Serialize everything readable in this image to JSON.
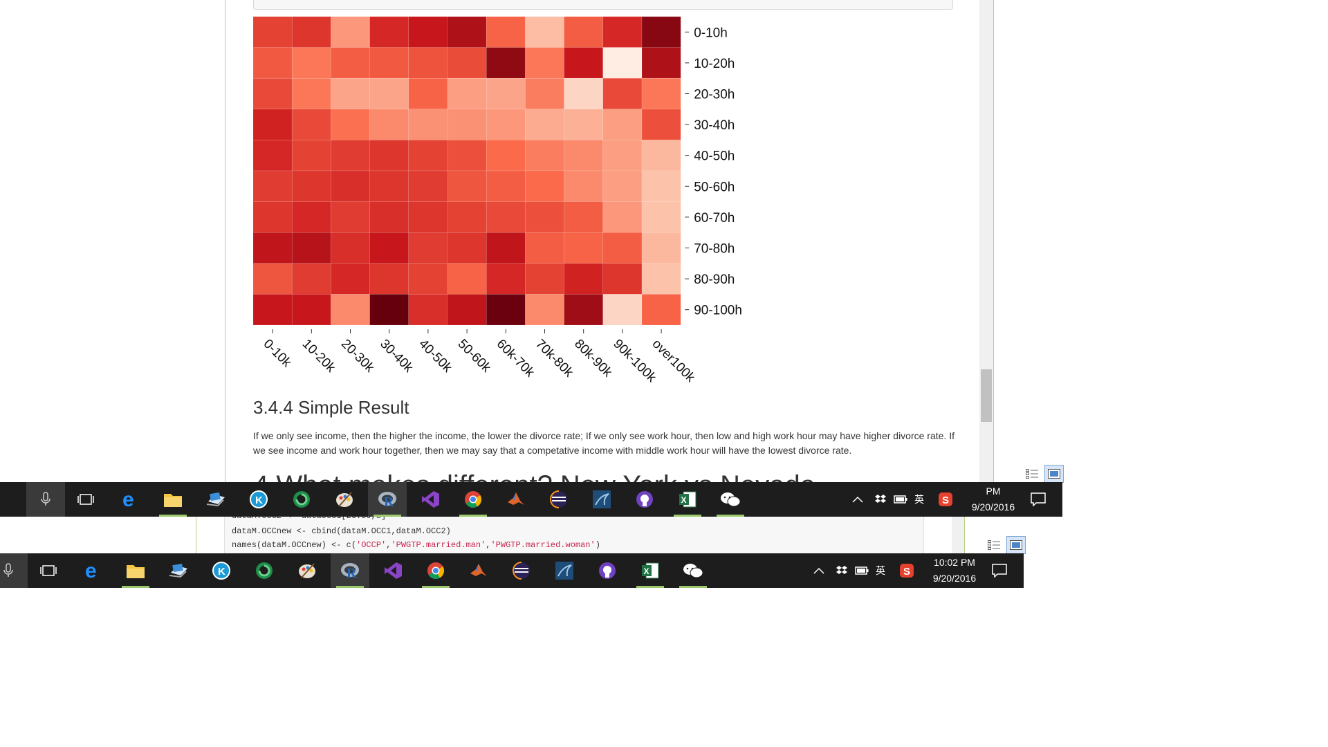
{
  "document": {
    "section_heading": "3.4.4 Simple Result",
    "section_body": "If we only see income, then the higher the income, the lower the divorce rate; If we only see work hour, then low and high work hour may have higher divorce rate. If we see income and work hour together, then we may say that a competative income with middle work hour will have the lowest divorce rate.",
    "big_heading": "4.What makes different? New York vs Nevada"
  },
  "chart_data": {
    "type": "heatmap",
    "x_categories": [
      "0-10k",
      "10-20k",
      "20-30k",
      "30-40k",
      "40-50k",
      "50-60k",
      "60k-70k",
      "70k-80k",
      "80k-90k",
      "90k-100k",
      "over100k"
    ],
    "y_categories": [
      "0-10h",
      "10-20h",
      "20-30h",
      "30-40h",
      "40-50h",
      "50-60h",
      "60-70h",
      "70-80h",
      "80-90h",
      "90-100h"
    ],
    "intensity": [
      [
        0.62,
        0.66,
        0.36,
        0.7,
        0.76,
        0.82,
        0.52,
        0.24,
        0.54,
        0.7,
        0.92
      ],
      [
        0.55,
        0.46,
        0.54,
        0.55,
        0.57,
        0.59,
        0.9,
        0.46,
        0.76,
        0.04,
        0.82
      ],
      [
        0.6,
        0.46,
        0.32,
        0.32,
        0.52,
        0.34,
        0.32,
        0.44,
        0.14,
        0.6,
        0.46
      ],
      [
        0.72,
        0.6,
        0.48,
        0.4,
        0.38,
        0.38,
        0.36,
        0.3,
        0.28,
        0.34,
        0.58
      ],
      [
        0.7,
        0.62,
        0.64,
        0.66,
        0.62,
        0.58,
        0.5,
        0.44,
        0.4,
        0.34,
        0.26
      ],
      [
        0.64,
        0.66,
        0.68,
        0.66,
        0.64,
        0.56,
        0.54,
        0.5,
        0.4,
        0.34,
        0.22
      ],
      [
        0.66,
        0.7,
        0.64,
        0.68,
        0.66,
        0.62,
        0.6,
        0.58,
        0.54,
        0.36,
        0.22
      ],
      [
        0.78,
        0.8,
        0.68,
        0.76,
        0.64,
        0.66,
        0.78,
        0.54,
        0.52,
        0.54,
        0.26
      ],
      [
        0.56,
        0.64,
        0.7,
        0.66,
        0.62,
        0.52,
        0.7,
        0.62,
        0.72,
        0.66,
        0.22
      ],
      [
        0.76,
        0.76,
        0.4,
        1.0,
        0.68,
        0.78,
        0.99,
        0.4,
        0.86,
        0.14,
        0.52
      ]
    ],
    "colormap": [
      "#fff5f0",
      "#fcbba1",
      "#fb6a4a",
      "#cb181d",
      "#67000d"
    ]
  },
  "code_window": {
    "line1": "dataM.OCC2 <- dataOCC1[26:50,3]",
    "line2": "dataM.OCCnew <- cbind(dataM.OCC1,dataM.OCC2)",
    "line3_a": "names(dataM.OCCnew) <- c(",
    "line3_s1": "'OCCP'",
    "line3_s2": "'PWGTP.married.man'",
    "line3_s3": "'PWGTP.married.woman'",
    "line3_end": ")"
  },
  "taskbar_top": {
    "clock_time": "PM",
    "clock_date": "9/20/2016",
    "ime": "英"
  },
  "taskbar_bottom": {
    "clock_time": "10:02 PM",
    "clock_date": "9/20/2016",
    "ime": "英"
  },
  "icons": [
    "microphone-icon",
    "task-view-icon",
    "edge-icon",
    "file-explorer-icon",
    "pc-icon",
    "kodi-icon",
    "chrome-green-icon",
    "paint-icon",
    "r-icon",
    "visual-studio-icon",
    "chrome-icon",
    "matlab-icon",
    "eclipse-icon",
    "mysql-icon",
    "github-icon",
    "excel-icon",
    "wechat-icon"
  ]
}
